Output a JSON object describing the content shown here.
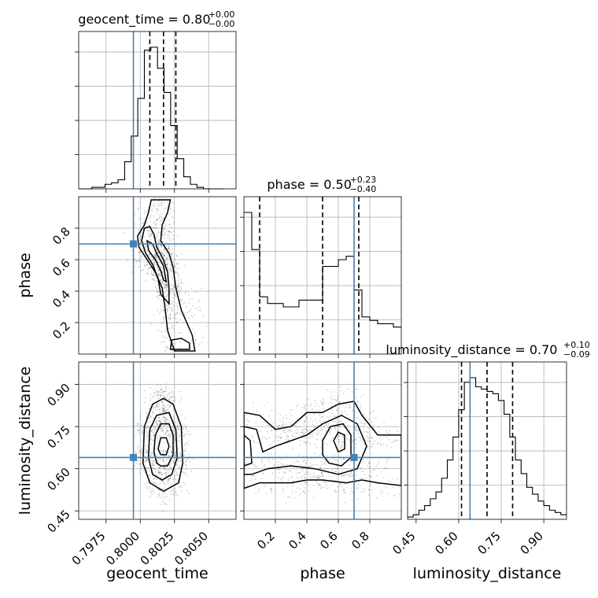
{
  "chart_data": {
    "type": "corner",
    "parameters": [
      {
        "name": "geocent_time",
        "axis_label": "geocent_time",
        "range": [
          0.7955,
          0.807
        ],
        "ticks": [
          0.7975,
          0.8,
          0.8025,
          0.805
        ],
        "tick_labels": [
          "0.7975",
          "0.8000",
          "0.8025",
          "0.8050"
        ],
        "truth": 0.7995,
        "title": {
          "prefix": "geocent_time = 0.80",
          "upper": "+0.00",
          "lower": "−0.00"
        },
        "quantiles": [
          0.8007,
          0.8017,
          0.8026
        ],
        "histogram": {
          "edges": [
            0.7955,
            0.79598,
            0.79646,
            0.79694,
            0.79742,
            0.7979,
            0.79838,
            0.79886,
            0.79934,
            0.79982,
            0.8003,
            0.80078,
            0.80126,
            0.80174,
            0.80222,
            0.8027,
            0.80318,
            0.80366,
            0.80414,
            0.80462,
            0.8051,
            0.80558,
            0.80606
          ],
          "counts": [
            0,
            0,
            1,
            1,
            3,
            4,
            6,
            18,
            35,
            60,
            92,
            94,
            80,
            64,
            42,
            20,
            8,
            3,
            1,
            0,
            0,
            0
          ]
        }
      },
      {
        "name": "phase",
        "axis_label": "phase",
        "range": [
          0.0,
          1.0
        ],
        "ticks": [
          0.2,
          0.4,
          0.6,
          0.8
        ],
        "tick_labels": [
          "0.2",
          "0.4",
          "0.6",
          "0.8"
        ],
        "truth": 0.7,
        "title": {
          "prefix": "phase = 0.50",
          "upper": "+0.23",
          "lower": "−0.40"
        },
        "quantiles": [
          0.1,
          0.5,
          0.73
        ],
        "histogram": {
          "edges": [
            0.0,
            0.05,
            0.1,
            0.15,
            0.2,
            0.25,
            0.3,
            0.35,
            0.4,
            0.45,
            0.5,
            0.55,
            0.6,
            0.65,
            0.7,
            0.75,
            0.8,
            0.85,
            0.9,
            0.95,
            1.0
          ],
          "counts": [
            84,
            62,
            34,
            30,
            30,
            28,
            28,
            32,
            32,
            32,
            52,
            52,
            56,
            58,
            38,
            22,
            20,
            18,
            18,
            16
          ]
        }
      },
      {
        "name": "luminosity_distance",
        "axis_label": "luminosity_distance",
        "range": [
          0.42,
          0.98
        ],
        "ticks": [
          0.45,
          0.6,
          0.75,
          0.9
        ],
        "tick_labels": [
          "0.45",
          "0.60",
          "0.75",
          "0.90"
        ],
        "truth": 0.64,
        "title": {
          "prefix": "luminosity_distance = 0.70",
          "upper": "+0.10",
          "lower": "−0.09"
        },
        "quantiles": [
          0.61,
          0.7,
          0.79
        ],
        "histogram": {
          "edges": [
            0.42,
            0.44,
            0.46,
            0.48,
            0.5,
            0.52,
            0.54,
            0.56,
            0.58,
            0.6,
            0.62,
            0.64,
            0.66,
            0.68,
            0.7,
            0.72,
            0.74,
            0.76,
            0.78,
            0.8,
            0.82,
            0.84,
            0.86,
            0.88,
            0.9,
            0.92,
            0.94,
            0.96,
            0.98
          ],
          "counts": [
            1,
            2,
            4,
            6,
            9,
            12,
            18,
            26,
            36,
            48,
            60,
            62,
            58,
            57,
            56,
            55,
            52,
            46,
            36,
            26,
            20,
            14,
            11,
            8,
            6,
            4,
            3,
            2
          ]
        }
      }
    ],
    "pairs": [
      {
        "x": "geocent_time",
        "y": "phase",
        "truth": [
          0.7995,
          0.7
        ],
        "contours": [
          [
            [
              0.8008,
              0.98
            ],
            [
              0.8006,
              0.9
            ],
            [
              0.8003,
              0.82
            ],
            [
              0.7998,
              0.75
            ],
            [
              0.7999,
              0.68
            ],
            [
              0.8005,
              0.6
            ],
            [
              0.8011,
              0.52
            ],
            [
              0.8016,
              0.42
            ],
            [
              0.8018,
              0.3
            ],
            [
              0.802,
              0.15
            ],
            [
              0.8025,
              0.02
            ],
            [
              0.804,
              0.02
            ],
            [
              0.8038,
              0.12
            ],
            [
              0.803,
              0.28
            ],
            [
              0.8026,
              0.42
            ],
            [
              0.8024,
              0.55
            ],
            [
              0.8021,
              0.64
            ],
            [
              0.8015,
              0.72
            ],
            [
              0.8016,
              0.82
            ],
            [
              0.802,
              0.9
            ],
            [
              0.8022,
              0.98
            ]
          ],
          [
            [
              0.8003,
              0.8
            ],
            [
              0.8001,
              0.72
            ],
            [
              0.8004,
              0.64
            ],
            [
              0.8009,
              0.57
            ],
            [
              0.8013,
              0.48
            ],
            [
              0.8015,
              0.38
            ],
            [
              0.8021,
              0.32
            ],
            [
              0.8021,
              0.42
            ],
            [
              0.802,
              0.52
            ],
            [
              0.8017,
              0.6
            ],
            [
              0.8012,
              0.68
            ],
            [
              0.801,
              0.76
            ],
            [
              0.8007,
              0.81
            ]
          ],
          [
            [
              0.8005,
              0.72
            ],
            [
              0.8006,
              0.66
            ],
            [
              0.8011,
              0.6
            ],
            [
              0.8015,
              0.53
            ],
            [
              0.8017,
              0.47
            ],
            [
              0.8019,
              0.46
            ],
            [
              0.8017,
              0.56
            ],
            [
              0.8012,
              0.64
            ],
            [
              0.8009,
              0.7
            ]
          ],
          [
            [
              0.8022,
              0.03
            ],
            [
              0.8023,
              0.09
            ],
            [
              0.803,
              0.1
            ],
            [
              0.8036,
              0.07
            ],
            [
              0.8036,
              0.03
            ]
          ]
        ],
        "samples": {
          "center": [
            0.8015,
            0.5
          ],
          "count": 900
        }
      },
      {
        "x": "geocent_time",
        "y": "luminosity_distance",
        "truth": [
          0.7995,
          0.64
        ],
        "contours": [
          [
            [
              0.8002,
              0.62
            ],
            [
              0.8003,
              0.75
            ],
            [
              0.8009,
              0.83
            ],
            [
              0.8017,
              0.85
            ],
            [
              0.8024,
              0.83
            ],
            [
              0.803,
              0.75
            ],
            [
              0.8031,
              0.62
            ],
            [
              0.8028,
              0.55
            ],
            [
              0.8017,
              0.52
            ],
            [
              0.8007,
              0.55
            ]
          ],
          [
            [
              0.8006,
              0.64
            ],
            [
              0.8007,
              0.74
            ],
            [
              0.8012,
              0.79
            ],
            [
              0.8021,
              0.8
            ],
            [
              0.8026,
              0.74
            ],
            [
              0.8027,
              0.64
            ],
            [
              0.8023,
              0.58
            ],
            [
              0.8016,
              0.56
            ],
            [
              0.8009,
              0.58
            ]
          ],
          [
            [
              0.801,
              0.66
            ],
            [
              0.8011,
              0.72
            ],
            [
              0.8015,
              0.76
            ],
            [
              0.8021,
              0.76
            ],
            [
              0.8024,
              0.72
            ],
            [
              0.8024,
              0.65
            ],
            [
              0.802,
              0.61
            ],
            [
              0.8015,
              0.61
            ],
            [
              0.8012,
              0.62
            ]
          ],
          [
            [
              0.8013,
              0.67
            ],
            [
              0.8015,
              0.71
            ],
            [
              0.8019,
              0.71
            ],
            [
              0.8021,
              0.68
            ],
            [
              0.8019,
              0.65
            ],
            [
              0.8015,
              0.65
            ]
          ]
        ],
        "samples": {
          "center": [
            0.8017,
            0.69
          ],
          "count": 900
        }
      },
      {
        "x": "phase",
        "y": "luminosity_distance",
        "truth": [
          0.7,
          0.64
        ],
        "contours": [
          [
            [
              0.0,
              0.8
            ],
            [
              0.1,
              0.79
            ],
            [
              0.2,
              0.74
            ],
            [
              0.3,
              0.75
            ],
            [
              0.4,
              0.8
            ],
            [
              0.5,
              0.8
            ],
            [
              0.6,
              0.83
            ],
            [
              0.7,
              0.84
            ],
            [
              0.75,
              0.79
            ],
            [
              0.85,
              0.72
            ],
            [
              1.0,
              0.72
            ],
            [
              1.0,
              0.54
            ],
            [
              0.85,
              0.55
            ],
            [
              0.75,
              0.56
            ],
            [
              0.65,
              0.55
            ],
            [
              0.5,
              0.56
            ],
            [
              0.4,
              0.56
            ],
            [
              0.3,
              0.55
            ],
            [
              0.2,
              0.55
            ],
            [
              0.1,
              0.55
            ],
            [
              0.0,
              0.53
            ]
          ],
          [
            [
              0.0,
              0.75
            ],
            [
              0.08,
              0.74
            ],
            [
              0.12,
              0.66
            ],
            [
              0.2,
              0.68
            ],
            [
              0.3,
              0.7
            ],
            [
              0.4,
              0.72
            ],
            [
              0.5,
              0.76
            ],
            [
              0.62,
              0.79
            ],
            [
              0.72,
              0.76
            ],
            [
              0.78,
              0.68
            ],
            [
              0.72,
              0.6
            ],
            [
              0.6,
              0.58
            ],
            [
              0.45,
              0.6
            ],
            [
              0.3,
              0.61
            ],
            [
              0.15,
              0.6
            ],
            [
              0.05,
              0.58
            ],
            [
              0.0,
              0.58
            ]
          ],
          [
            [
              0.0,
              0.72
            ],
            [
              0.04,
              0.7
            ],
            [
              0.05,
              0.62
            ],
            [
              0.0,
              0.61
            ]
          ],
          [
            [
              0.5,
              0.7
            ],
            [
              0.55,
              0.75
            ],
            [
              0.63,
              0.76
            ],
            [
              0.68,
              0.72
            ],
            [
              0.68,
              0.64
            ],
            [
              0.62,
              0.61
            ],
            [
              0.54,
              0.62
            ],
            [
              0.5,
              0.65
            ]
          ],
          [
            [
              0.57,
              0.7
            ],
            [
              0.6,
              0.73
            ],
            [
              0.64,
              0.72
            ],
            [
              0.64,
              0.67
            ],
            [
              0.6,
              0.66
            ]
          ]
        ],
        "samples": {
          "center": [
            0.5,
            0.67
          ],
          "count": 900
        }
      }
    ]
  }
}
